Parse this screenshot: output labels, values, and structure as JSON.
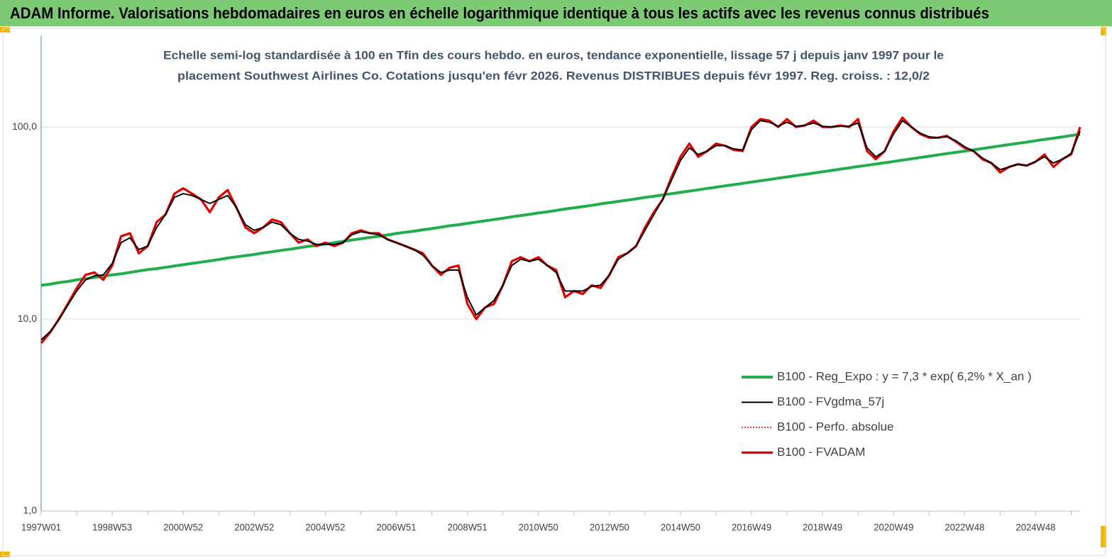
{
  "chart_data": {
    "type": "line",
    "title": "ADAM Informe. Valorisations hebdomadaires en euros en échelle logarithmique identique à tous les actifs avec les revenus connus distribués",
    "subtitle": [
      "Echelle semi-log standardisée à 100 en Tfin des cours hebdo. en euros, tendance exponentielle, lissage 57 j depuis janv 1997 pour le",
      "placement Southwest Airlines Co. Cotations jusqu'en févr 2026. Revenus DISTRIBUES depuis févr 1997. Reg. croiss. : 12,0/2"
    ],
    "categories": [
      "1997W01",
      null,
      null,
      null,
      null,
      null,
      null,
      null,
      "1998W53",
      null,
      null,
      null,
      null,
      null,
      null,
      null,
      "2000W52",
      null,
      null,
      null,
      null,
      null,
      null,
      null,
      "2002W52",
      null,
      null,
      null,
      null,
      null,
      null,
      null,
      "2004W52",
      null,
      null,
      null,
      null,
      null,
      null,
      null,
      "2006W51",
      null,
      null,
      null,
      null,
      null,
      null,
      null,
      "2008W51",
      null,
      null,
      null,
      null,
      null,
      null,
      null,
      "2010W50",
      null,
      null,
      null,
      null,
      null,
      null,
      null,
      "2012W50",
      null,
      null,
      null,
      null,
      null,
      null,
      null,
      "2014W50",
      null,
      null,
      null,
      null,
      null,
      null,
      null,
      "2016W49",
      null,
      null,
      null,
      null,
      null,
      null,
      null,
      "2018W49",
      null,
      null,
      null,
      null,
      null,
      null,
      null,
      "2020W49",
      null,
      null,
      null,
      null,
      null,
      null,
      null,
      "2022W48",
      null,
      null,
      null,
      null,
      null,
      null,
      null,
      "2024W48",
      null,
      null,
      null,
      null,
      null
    ],
    "log_scale": true,
    "grid": true,
    "legend": "right",
    "ylim": [
      1,
      300
    ],
    "yticks": [
      {
        "value": 1,
        "label": "1,0"
      },
      {
        "value": 10,
        "label": "10,0"
      },
      {
        "value": 100,
        "label": "100,0"
      }
    ],
    "series": [
      {
        "name": "B100 - Reg_Expo : y = 7,3 * exp( 6,2% *  X_an )",
        "color": "#1fae4b",
        "style": "solid",
        "width": 4,
        "values": [
          15.0,
          15.2,
          15.5,
          15.7,
          16.0,
          16.2,
          16.5,
          16.7,
          17.0,
          17.2,
          17.5,
          17.8,
          18.1,
          18.3,
          18.6,
          18.9,
          19.2,
          19.5,
          19.8,
          20.1,
          20.4,
          20.8,
          21.1,
          21.4,
          21.7,
          22.1,
          22.4,
          22.8,
          23.1,
          23.5,
          23.9,
          24.2,
          24.6,
          25.0,
          25.4,
          25.8,
          26.2,
          26.6,
          27.0,
          27.4,
          27.9,
          28.3,
          28.7,
          29.2,
          29.6,
          30.1,
          30.6,
          31.0,
          31.5,
          32.0,
          32.5,
          33.0,
          33.5,
          34.1,
          34.6,
          35.1,
          35.7,
          36.2,
          36.8,
          37.4,
          38.0,
          38.5,
          39.1,
          39.8,
          40.4,
          41.0,
          41.6,
          42.3,
          43.0,
          43.6,
          44.3,
          45.0,
          45.7,
          46.4,
          47.1,
          47.9,
          48.6,
          49.4,
          50.1,
          50.9,
          51.7,
          52.5,
          53.3,
          54.2,
          55.0,
          55.9,
          56.7,
          57.6,
          58.5,
          59.4,
          60.4,
          61.3,
          62.3,
          63.2,
          64.2,
          65.2,
          66.2,
          67.3,
          68.3,
          69.4,
          70.5,
          71.6,
          72.7,
          73.8,
          75.0,
          76.1,
          77.3,
          78.5,
          79.8,
          81.0,
          82.3,
          83.5,
          84.9,
          86.2,
          87.5,
          88.9,
          90.3,
          91.7
        ]
      },
      {
        "name": "B100 - FVgdma_57j",
        "color": "#000000",
        "style": "solid",
        "width": 2,
        "values": [
          7.8,
          8.6,
          9.9,
          11.8,
          14,
          16,
          16.8,
          17,
          19.5,
          25,
          26.5,
          23,
          24,
          30,
          35,
          43,
          45,
          44,
          42,
          40,
          42,
          44,
          38,
          31,
          29,
          30,
          32,
          31,
          28,
          26,
          25.5,
          24.5,
          24.5,
          24.5,
          25,
          27.5,
          28.5,
          28,
          27.5,
          26,
          25,
          24,
          23,
          21.5,
          19,
          17.5,
          18,
          18,
          13,
          10.5,
          11.5,
          12.5,
          15,
          19,
          20.5,
          20,
          20.5,
          19,
          17.5,
          14,
          14,
          14,
          14.8,
          15,
          17,
          20.5,
          22,
          24,
          29,
          35,
          42,
          53,
          67,
          78,
          72,
          75,
          80,
          80,
          77,
          76,
          97,
          108,
          106,
          101,
          106,
          101,
          102,
          105,
          101,
          100,
          101,
          101,
          105,
          78,
          70,
          75,
          92,
          108,
          100,
          93,
          89,
          88,
          89,
          85,
          79,
          75,
          69,
          65,
          60,
          62,
          64,
          63,
          66,
          70,
          65,
          68,
          73,
          95
        ]
      },
      {
        "name": "B100 - Perfo. absolue",
        "color": "#e00000",
        "style": "dotted",
        "width": 1.5,
        "values": [
          7.5,
          8.5,
          10,
          12,
          14.5,
          17,
          17.5,
          16,
          19,
          27,
          28,
          22,
          24,
          32,
          35,
          45,
          48,
          45,
          42,
          36,
          43,
          47,
          38,
          30,
          28,
          30,
          33,
          32,
          28,
          25,
          26,
          24,
          25,
          24,
          25,
          28,
          29,
          28,
          28,
          26,
          25,
          24,
          23,
          22,
          19,
          17,
          18.5,
          19,
          12,
          10,
          11.5,
          12,
          15,
          20,
          21,
          20,
          21,
          19,
          18,
          13,
          14,
          13.5,
          15,
          14.5,
          17,
          21,
          22,
          24,
          30,
          36,
          42,
          55,
          70,
          82,
          70,
          75,
          82,
          80,
          76,
          75,
          100,
          110,
          108,
          100,
          110,
          100,
          102,
          108,
          100,
          100,
          102,
          100,
          110,
          75,
          68,
          75,
          95,
          112,
          100,
          92,
          88,
          88,
          90,
          84,
          78,
          75,
          68,
          65,
          58,
          62,
          64,
          63,
          66,
          72,
          62,
          68,
          72,
          100
        ]
      },
      {
        "name": "B100 - FVADAM",
        "color": "#e00000",
        "style": "solid",
        "width": 3.2,
        "values": [
          7.5,
          8.5,
          10,
          12,
          14.5,
          17,
          17.5,
          16,
          19,
          27,
          28,
          22,
          24,
          32,
          35,
          45,
          48,
          45,
          42,
          36,
          43,
          47,
          38,
          30,
          28,
          30,
          33,
          32,
          28,
          25,
          26,
          24,
          25,
          24,
          25,
          28,
          29,
          28,
          28,
          26,
          25,
          24,
          23,
          22,
          19,
          17,
          18.5,
          19,
          12,
          10,
          11.5,
          12,
          15,
          20,
          21,
          20,
          21,
          19,
          18,
          13,
          14,
          13.5,
          15,
          14.5,
          17,
          21,
          22,
          24,
          30,
          36,
          42,
          55,
          70,
          82,
          70,
          75,
          82,
          80,
          76,
          75,
          100,
          110,
          108,
          100,
          110,
          100,
          102,
          108,
          100,
          100,
          102,
          100,
          110,
          75,
          68,
          75,
          95,
          112,
          100,
          92,
          88,
          88,
          90,
          84,
          78,
          75,
          68,
          65,
          58,
          62,
          64,
          63,
          66,
          72,
          62,
          68,
          72,
          100
        ]
      }
    ]
  }
}
